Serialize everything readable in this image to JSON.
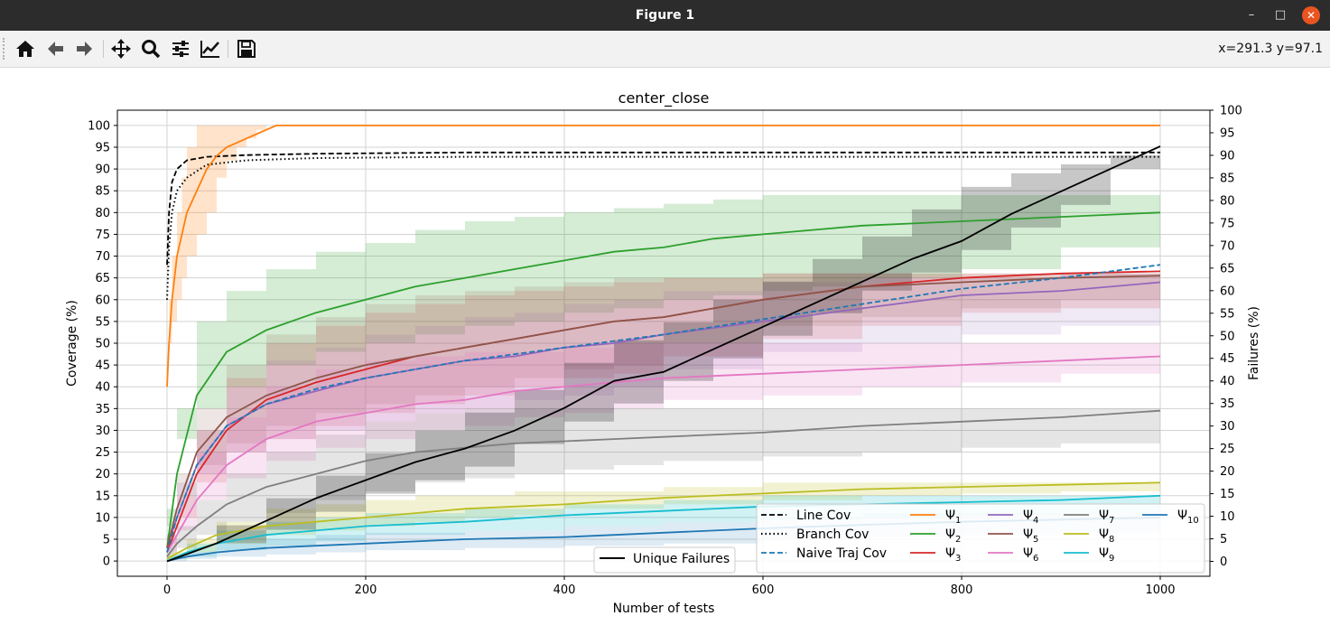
{
  "window": {
    "title": "Figure 1",
    "minimize_icon": "minimize-icon",
    "maximize_icon": "maximize-icon",
    "close_icon": "close-icon"
  },
  "toolbar": {
    "buttons": [
      {
        "name": "home-icon"
      },
      {
        "name": "back-arrow-icon"
      },
      {
        "name": "forward-arrow-icon"
      },
      {
        "name": "pan-icon"
      },
      {
        "name": "zoom-icon"
      },
      {
        "name": "subplots-config-icon"
      },
      {
        "name": "axes-edit-icon"
      },
      {
        "name": "save-icon"
      }
    ],
    "coords": "x=291.3 y=97.1"
  },
  "colors": {
    "cov_black": "#000000",
    "naive": "#1f77b4",
    "psi1": "#ff7f0e",
    "psi2": "#2ca02c",
    "psi3": "#d62728",
    "psi4": "#9467bd",
    "psi5": "#8c564b",
    "psi6": "#e377c2",
    "psi7": "#7f7f7f",
    "psi8": "#bcbd22",
    "psi9": "#17becf",
    "psi10": "#1f77b4"
  },
  "chart_data": {
    "type": "line",
    "title": "center_close",
    "xlabel": "Number of tests",
    "ylabel": "Coverage (%)",
    "ylabel_right": "Failures (%)",
    "xlim": [
      -50,
      1050
    ],
    "xticks": [
      0,
      200,
      400,
      600,
      800,
      1000
    ],
    "ylim_left": [
      -3.5,
      103.5
    ],
    "ylim_right": [
      -3.3,
      100
    ],
    "yticks_left": [
      0,
      5,
      10,
      15,
      20,
      25,
      30,
      35,
      40,
      45,
      50,
      55,
      60,
      65,
      70,
      75,
      80,
      85,
      90,
      95,
      100
    ],
    "yticks_right": [
      0,
      5,
      10,
      15,
      20,
      25,
      30,
      35,
      40,
      45,
      50,
      55,
      60,
      65,
      70,
      75,
      80,
      85,
      90,
      95,
      100
    ],
    "grid": true,
    "legend_right": {
      "placement": "lower-right",
      "entries": [
        {
          "label": "Line Cov",
          "style": "dashed",
          "color": "#000000"
        },
        {
          "label": "Branch Cov",
          "style": "dotted",
          "color": "#000000"
        },
        {
          "label": "Naive Traj Cov",
          "style": "dashed",
          "color": "#1f77b4"
        },
        {
          "label": "Ψ",
          "sub": "1",
          "color": "#ff7f0e"
        },
        {
          "label": "Ψ",
          "sub": "2",
          "color": "#2ca02c"
        },
        {
          "label": "Ψ",
          "sub": "3",
          "color": "#d62728"
        },
        {
          "label": "Ψ",
          "sub": "4",
          "color": "#9467bd"
        },
        {
          "label": "Ψ",
          "sub": "5",
          "color": "#8c564b"
        },
        {
          "label": "Ψ",
          "sub": "6",
          "color": "#e377c2"
        },
        {
          "label": "Ψ",
          "sub": "7",
          "color": "#7f7f7f"
        },
        {
          "label": "Ψ",
          "sub": "8",
          "color": "#bcbd22"
        },
        {
          "label": "Ψ",
          "sub": "9",
          "color": "#17becf"
        },
        {
          "label": "Ψ",
          "sub": "10",
          "color": "#1f77b4"
        }
      ]
    },
    "legend_left": {
      "placement": "lower-center",
      "entries": [
        {
          "label": "Unique Failures",
          "color": "#000000"
        }
      ]
    },
    "series": [
      {
        "name": "Line Cov",
        "axis": "left",
        "color": "#000000",
        "dash": "dashed",
        "band": null,
        "x": [
          0,
          2,
          5,
          10,
          20,
          40,
          80,
          150,
          300,
          500,
          1000
        ],
        "y": [
          68,
          80,
          87,
          90,
          92,
          92.8,
          93.2,
          93.5,
          93.8,
          93.8,
          93.8
        ]
      },
      {
        "name": "Branch Cov",
        "axis": "left",
        "color": "#000000",
        "dash": "dotted",
        "band": null,
        "x": [
          0,
          2,
          5,
          10,
          20,
          40,
          80,
          150,
          300,
          500,
          1000
        ],
        "y": [
          60,
          72,
          80,
          85,
          88,
          91,
          92,
          92.5,
          92.8,
          92.8,
          92.8
        ]
      },
      {
        "name": "Ψ1",
        "axis": "left",
        "color": "#ff7f0e",
        "dash": "solid",
        "band_opacity": 0.22,
        "x": [
          0,
          2,
          5,
          10,
          15,
          20,
          30,
          40,
          50,
          60,
          70,
          80,
          90,
          100,
          110,
          1000
        ],
        "y": [
          40,
          50,
          60,
          70,
          75,
          80,
          85,
          90,
          93,
          95,
          96,
          97,
          98,
          99,
          100,
          100
        ],
        "lo": [
          40,
          45,
          50,
          55,
          60,
          65,
          70,
          75,
          80,
          88,
          92,
          95,
          97,
          99,
          100,
          100
        ],
        "hi": [
          45,
          60,
          70,
          80,
          88,
          95,
          100,
          100,
          100,
          100,
          100,
          100,
          100,
          100,
          100,
          100
        ]
      },
      {
        "name": "Ψ2",
        "axis": "left",
        "color": "#2ca02c",
        "dash": "solid",
        "band_opacity": 0.2,
        "x": [
          0,
          10,
          30,
          60,
          100,
          150,
          200,
          250,
          300,
          350,
          400,
          450,
          500,
          550,
          600,
          650,
          700,
          800,
          900,
          1000
        ],
        "y": [
          3,
          20,
          38,
          48,
          53,
          57,
          60,
          63,
          65,
          67,
          69,
          71,
          72,
          74,
          75,
          76,
          77,
          78,
          79,
          80
        ],
        "lo": [
          0,
          12,
          28,
          35,
          40,
          45,
          48,
          50,
          52,
          54,
          55,
          57,
          58,
          60,
          61,
          62,
          63,
          65,
          67,
          72
        ],
        "hi": [
          8,
          35,
          55,
          62,
          67,
          71,
          73,
          76,
          78,
          79,
          80,
          81,
          82,
          83,
          84,
          84,
          84,
          84,
          84,
          84
        ]
      },
      {
        "name": "Ψ3",
        "axis": "left",
        "color": "#d62728",
        "dash": "solid",
        "band_opacity": 0.15,
        "x": [
          0,
          10,
          30,
          60,
          100,
          150,
          200,
          250,
          300,
          350,
          400,
          450,
          500,
          600,
          700,
          800,
          900,
          1000
        ],
        "y": [
          2,
          8,
          20,
          30,
          37,
          41,
          44,
          47,
          49,
          51,
          53,
          55,
          56,
          60,
          63,
          65,
          66,
          66.5
        ],
        "lo": [
          0,
          3,
          10,
          18,
          25,
          28,
          31,
          34,
          36,
          38,
          40,
          42,
          43,
          47,
          51,
          54,
          57,
          58
        ],
        "hi": [
          5,
          15,
          30,
          42,
          50,
          54,
          57,
          59,
          61,
          62,
          63,
          64,
          65,
          66,
          66,
          66,
          66,
          67
        ]
      },
      {
        "name": "Ψ4",
        "axis": "left",
        "color": "#9467bd",
        "dash": "solid",
        "band_opacity": 0.15,
        "x": [
          0,
          10,
          30,
          60,
          100,
          150,
          200,
          250,
          300,
          350,
          400,
          450,
          500,
          600,
          700,
          800,
          900,
          1000
        ],
        "y": [
          3,
          10,
          22,
          31,
          36,
          39,
          42,
          44,
          46,
          47,
          49,
          50,
          52,
          55,
          58,
          61,
          62,
          64
        ],
        "lo": [
          0,
          4,
          12,
          20,
          25,
          28,
          30,
          32,
          34,
          35,
          37,
          38,
          40,
          44,
          48,
          50,
          52,
          54
        ],
        "hi": [
          6,
          18,
          30,
          40,
          46,
          49,
          52,
          54,
          56,
          57,
          59,
          60,
          62,
          64,
          65,
          65,
          66,
          66
        ]
      },
      {
        "name": "Ψ5",
        "axis": "left",
        "color": "#8c564b",
        "dash": "solid",
        "band_opacity": 0.15,
        "x": [
          0,
          10,
          30,
          60,
          100,
          150,
          200,
          250,
          300,
          350,
          400,
          450,
          500,
          600,
          700,
          800,
          900,
          1000
        ],
        "y": [
          3,
          12,
          25,
          33,
          38,
          42,
          45,
          47,
          49,
          51,
          53,
          55,
          56,
          60,
          63,
          64,
          65,
          65.5
        ],
        "lo": [
          0,
          5,
          15,
          22,
          27,
          31,
          34,
          36,
          38,
          40,
          42,
          44,
          45,
          50,
          54,
          56,
          58,
          60
        ],
        "hi": [
          6,
          20,
          35,
          45,
          52,
          56,
          59,
          61,
          62,
          63,
          64,
          65,
          65,
          66,
          66,
          66,
          66,
          66
        ]
      },
      {
        "name": "Ψ6",
        "axis": "left",
        "color": "#e377c2",
        "dash": "solid",
        "band_opacity": 0.2,
        "x": [
          0,
          10,
          30,
          60,
          100,
          150,
          200,
          250,
          300,
          350,
          400,
          450,
          500,
          600,
          700,
          800,
          900,
          1000
        ],
        "y": [
          2,
          6,
          14,
          22,
          28,
          32,
          34,
          36,
          37,
          39,
          40,
          41,
          42,
          43,
          44,
          45,
          46,
          47
        ],
        "lo": [
          0,
          2,
          7,
          14,
          19,
          23,
          26,
          28,
          30,
          31,
          33,
          34,
          35,
          37,
          38,
          40,
          41,
          43
        ],
        "hi": [
          5,
          12,
          25,
          33,
          40,
          44,
          46,
          47,
          48,
          48,
          49,
          50,
          50,
          50,
          50,
          50,
          50,
          50
        ]
      },
      {
        "name": "Ψ7",
        "axis": "left",
        "color": "#7f7f7f",
        "dash": "solid",
        "band_opacity": 0.2,
        "x": [
          0,
          10,
          30,
          60,
          100,
          150,
          200,
          250,
          300,
          350,
          400,
          450,
          500,
          600,
          700,
          800,
          900,
          1000
        ],
        "y": [
          1,
          4,
          8,
          13,
          17,
          20,
          23,
          25,
          26,
          27,
          27.5,
          28,
          28.5,
          29.5,
          31,
          32,
          33,
          34.5
        ],
        "lo": [
          0,
          1,
          3,
          6,
          9,
          11,
          14,
          16,
          18,
          19,
          20,
          21,
          22,
          23,
          24,
          25,
          26,
          27
        ],
        "hi": [
          3,
          8,
          14,
          20,
          25,
          29,
          32,
          34,
          35,
          35,
          35,
          35,
          35,
          35,
          35,
          35,
          35,
          35
        ]
      },
      {
        "name": "Ψ8",
        "axis": "left",
        "color": "#bcbd22",
        "dash": "solid",
        "band_opacity": 0.2,
        "x": [
          0,
          20,
          50,
          100,
          150,
          200,
          250,
          300,
          350,
          400,
          500,
          600,
          700,
          800,
          900,
          1000
        ],
        "y": [
          0.5,
          3,
          6,
          8,
          9,
          10,
          11,
          12,
          12.5,
          13,
          14.5,
          15.5,
          16.5,
          17,
          17.5,
          18
        ],
        "lo": [
          0,
          0.5,
          2,
          4,
          6,
          7,
          8,
          9,
          10,
          10.5,
          12,
          13,
          14,
          15,
          15.5,
          16
        ],
        "hi": [
          2,
          5,
          9,
          12,
          13,
          14,
          15,
          15,
          16,
          16,
          17,
          18,
          18,
          18,
          18,
          19
        ]
      },
      {
        "name": "Ψ9",
        "axis": "left",
        "color": "#17becf",
        "dash": "solid",
        "band_opacity": 0.2,
        "x": [
          0,
          20,
          50,
          100,
          150,
          200,
          300,
          400,
          500,
          600,
          700,
          800,
          900,
          1000
        ],
        "y": [
          0,
          2,
          4,
          6,
          7,
          8,
          9,
          10.5,
          11.5,
          12.5,
          13,
          13.5,
          14,
          15
        ],
        "lo": [
          0,
          0.5,
          1,
          2.5,
          3.5,
          4.5,
          6,
          7,
          8,
          9,
          9.5,
          10,
          10.5,
          11
        ],
        "hi": [
          1,
          4,
          7,
          9,
          10,
          11,
          12,
          13,
          14,
          15,
          15,
          15,
          15,
          16
        ]
      },
      {
        "name": "Ψ10",
        "axis": "left",
        "color": "#1f77b4",
        "dash": "solid",
        "band_opacity": 0.15,
        "x": [
          0,
          20,
          50,
          100,
          150,
          200,
          300,
          400,
          500,
          600,
          700,
          800,
          900,
          1000
        ],
        "y": [
          0,
          1,
          2,
          3,
          3.5,
          4,
          5,
          5.5,
          6.5,
          7.5,
          8.3,
          9,
          9.5,
          10
        ],
        "lo": [
          0,
          0,
          0.5,
          1,
          1.5,
          2,
          2.5,
          3,
          3.5,
          4,
          5,
          5.5,
          6,
          6.5
        ],
        "hi": [
          1,
          2,
          4,
          5,
          6,
          6.5,
          7,
          8,
          9,
          10,
          11,
          11,
          11,
          12
        ]
      },
      {
        "name": "Naive Traj Cov",
        "axis": "left",
        "color": "#1f77b4",
        "dash": "dashed",
        "band": null,
        "x": [
          0,
          10,
          30,
          60,
          100,
          150,
          200,
          250,
          300,
          350,
          400,
          450,
          500,
          600,
          700,
          800,
          900,
          1000
        ],
        "y": [
          2,
          10,
          22,
          31,
          36,
          39.5,
          42,
          44,
          46,
          47.5,
          49,
          50.5,
          52,
          55.5,
          59,
          62.5,
          65,
          68
        ]
      },
      {
        "name": "Unique Failures",
        "axis": "right",
        "color": "#000000",
        "dash": "solid",
        "band_opacity": 0.22,
        "x": [
          0,
          50,
          100,
          150,
          200,
          250,
          300,
          350,
          400,
          450,
          500,
          550,
          600,
          650,
          700,
          750,
          800,
          850,
          900,
          950,
          1000
        ],
        "y": [
          0,
          4,
          9,
          14,
          18,
          22,
          25,
          29,
          34,
          40,
          42,
          47,
          52,
          57,
          62,
          67,
          71,
          77,
          82,
          87,
          92
        ],
        "lo": [
          0,
          1,
          4,
          7,
          11,
          15,
          18,
          21,
          26,
          31,
          35,
          40,
          45,
          50,
          55,
          60,
          64,
          69,
          74,
          79,
          87
        ],
        "hi": [
          1,
          8,
          14,
          19,
          24,
          29,
          33,
          38,
          44,
          49,
          53,
          58,
          62,
          67,
          72,
          78,
          83,
          86,
          88,
          90,
          92
        ]
      }
    ]
  }
}
